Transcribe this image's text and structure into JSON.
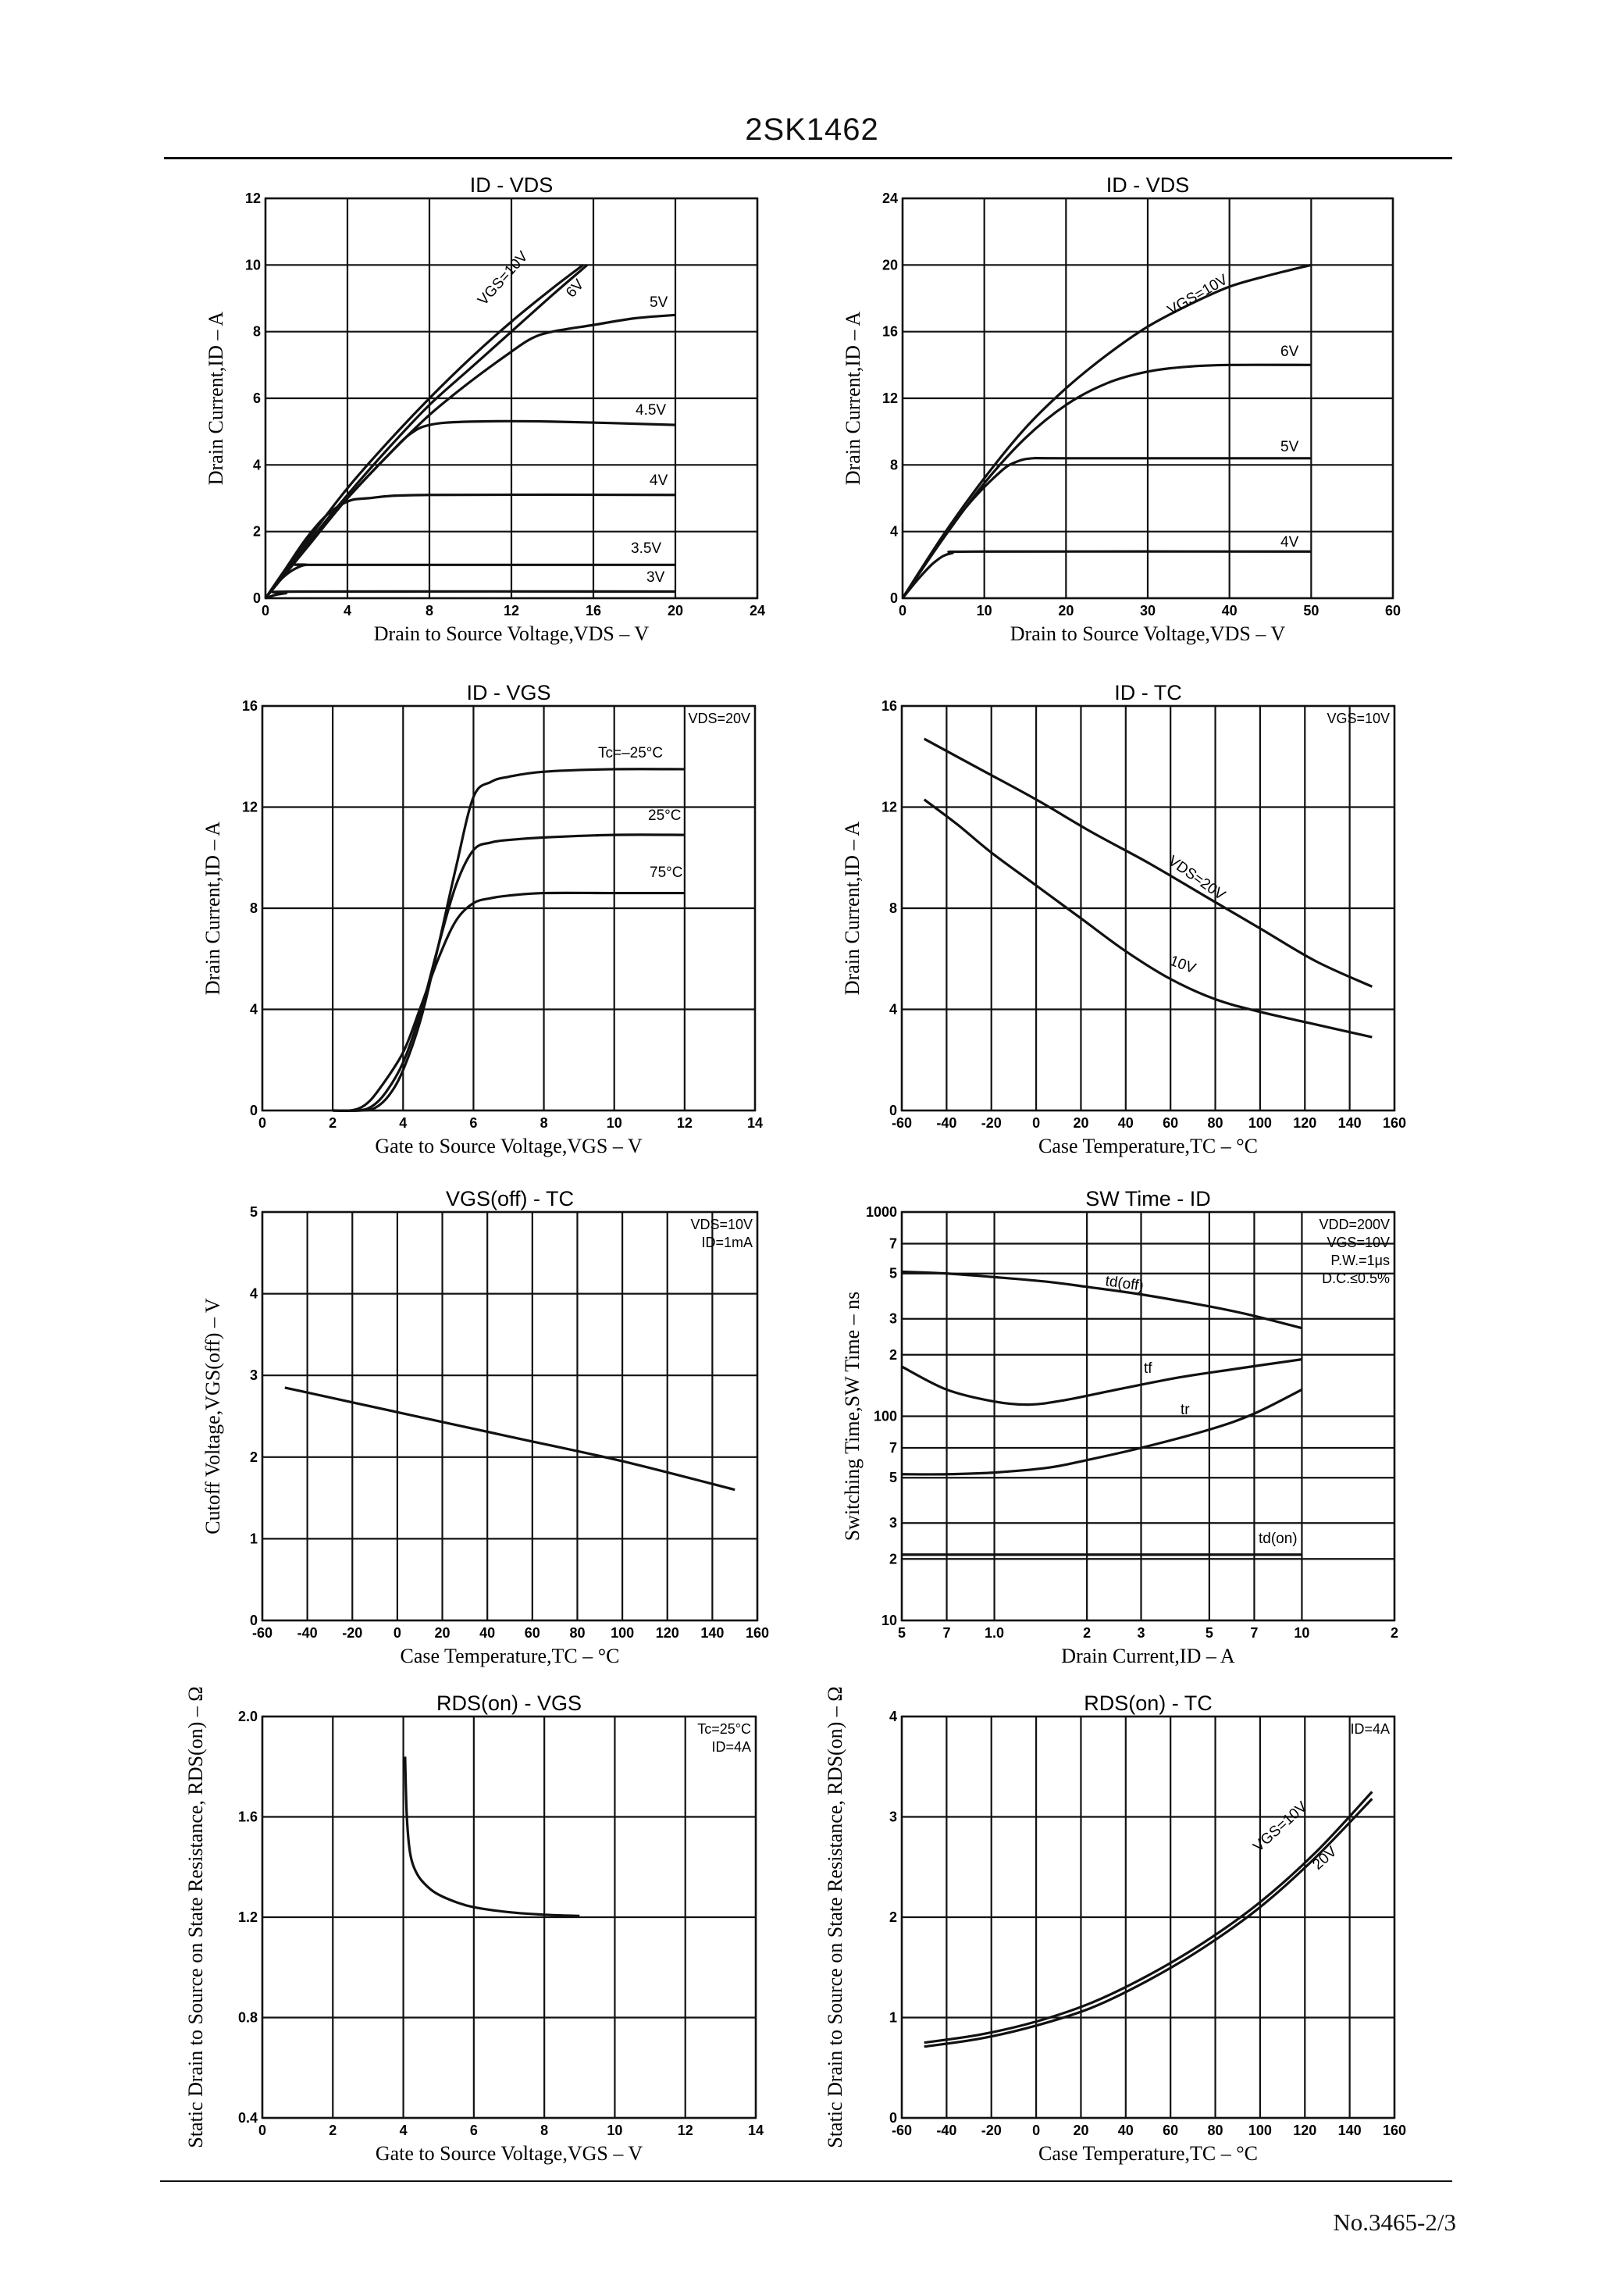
{
  "page": {
    "title": "2SK1462",
    "footer": "No.3465-2/3"
  },
  "chart_data": [
    {
      "id": "c1",
      "type": "line",
      "scale": "linear",
      "title": "ID - VDS",
      "xlabel": "Drain to Source Voltage,VDS – V",
      "ylabel": "Drain Current,ID – A",
      "xlim": [
        0,
        24
      ],
      "ylim": [
        0,
        12
      ],
      "xticks": [
        "0",
        "4",
        "8",
        "12",
        "16",
        "20",
        "24"
      ],
      "yticks": [
        "0",
        "2",
        "4",
        "6",
        "8",
        "10",
        "12"
      ],
      "notes": [],
      "series": [
        {
          "name": "VGS=10V",
          "x": [
            0,
            2,
            4,
            6,
            8,
            10,
            12,
            14,
            15.5
          ],
          "y": [
            0,
            1.7,
            3.3,
            4.7,
            6.0,
            7.2,
            8.3,
            9.3,
            10.0
          ]
        },
        {
          "name": "6V",
          "x": [
            0,
            2,
            4,
            6,
            8,
            10,
            12,
            14,
            15.7
          ],
          "y": [
            0,
            1.6,
            3.1,
            4.5,
            5.8,
            6.9,
            8.0,
            9.1,
            10.0
          ]
        },
        {
          "name": "5V",
          "x": [
            0,
            2,
            4,
            6,
            8,
            10,
            12,
            13,
            14,
            16,
            18,
            20
          ],
          "y": [
            0,
            1.6,
            3.0,
            4.3,
            5.5,
            6.5,
            7.4,
            7.8,
            8.0,
            8.2,
            8.4,
            8.5
          ]
        },
        {
          "name": "4.5V",
          "x": [
            0,
            2,
            4,
            6,
            7,
            8,
            10,
            14,
            20
          ],
          "y": [
            0,
            1.5,
            3.0,
            4.3,
            4.9,
            5.2,
            5.3,
            5.3,
            5.2
          ]
        },
        {
          "name": "4V",
          "x": [
            0,
            1,
            2,
            3,
            4,
            5,
            8,
            20
          ],
          "y": [
            0,
            0.9,
            1.8,
            2.5,
            2.9,
            3.0,
            3.1,
            3.1
          ]
        },
        {
          "name": "3.5V",
          "x": [
            0,
            0.5,
            1,
            1.5,
            2,
            3,
            20
          ],
          "y": [
            0,
            0.4,
            0.7,
            0.9,
            1.0,
            1.0,
            1.0
          ]
        },
        {
          "name": "3V",
          "x": [
            0,
            0.5,
            1,
            2,
            20
          ],
          "y": [
            0,
            0.1,
            0.15,
            0.2,
            0.2
          ]
        }
      ]
    },
    {
      "id": "c2",
      "type": "line",
      "scale": "linear",
      "title": "ID - VDS",
      "xlabel": "Drain to Source Voltage,VDS – V",
      "ylabel": "Drain Current,ID – A",
      "xlim": [
        0,
        60
      ],
      "ylim": [
        0,
        24
      ],
      "xticks": [
        "0",
        "10",
        "20",
        "30",
        "40",
        "50",
        "60"
      ],
      "yticks": [
        "0",
        "4",
        "8",
        "12",
        "16",
        "20",
        "24"
      ],
      "notes": [],
      "series": [
        {
          "name": "VGS=10V",
          "x": [
            0,
            5,
            10,
            15,
            20,
            25,
            30,
            35,
            40,
            45,
            50
          ],
          "y": [
            0,
            3.8,
            7.2,
            10.2,
            12.6,
            14.6,
            16.3,
            17.6,
            18.7,
            19.4,
            20.0
          ]
        },
        {
          "name": "6V",
          "x": [
            0,
            5,
            10,
            15,
            20,
            25,
            30,
            35,
            40,
            50
          ],
          "y": [
            0,
            3.6,
            6.9,
            9.6,
            11.6,
            12.9,
            13.6,
            13.9,
            14.0,
            14.0
          ]
        },
        {
          "name": "5V",
          "x": [
            0,
            4,
            8,
            12,
            14,
            16,
            20,
            50
          ],
          "y": [
            0,
            3.0,
            5.6,
            7.6,
            8.2,
            8.4,
            8.4,
            8.4
          ]
        },
        {
          "name": "4V",
          "x": [
            0,
            2,
            4,
            6,
            10,
            50
          ],
          "y": [
            0,
            1.2,
            2.2,
            2.7,
            2.8,
            2.8
          ]
        }
      ]
    },
    {
      "id": "c3",
      "type": "line",
      "scale": "linear",
      "title": "ID - VGS",
      "xlabel": "Gate to Source Voltage,VGS – V",
      "ylabel": "Drain Current,ID – A",
      "xlim": [
        0,
        14
      ],
      "ylim": [
        0,
        16
      ],
      "xticks": [
        "0",
        "2",
        "4",
        "6",
        "8",
        "10",
        "12",
        "14"
      ],
      "yticks": [
        "0",
        "4",
        "8",
        "12",
        "16"
      ],
      "notes": [
        "VDS=20V"
      ],
      "series": [
        {
          "name": "Tc=–25°C",
          "x": [
            2,
            2.8,
            3.2,
            3.6,
            4,
            4.5,
            5,
            5.5,
            6,
            6.5,
            7,
            8,
            10,
            12
          ],
          "y": [
            0,
            0,
            0.1,
            0.6,
            1.6,
            3.6,
            6.5,
            9.6,
            12.4,
            13.0,
            13.2,
            13.4,
            13.5,
            13.5
          ]
        },
        {
          "name": "25°C",
          "x": [
            2,
            2.7,
            3.1,
            3.5,
            4,
            4.5,
            5,
            5.5,
            6,
            6.5,
            7,
            8,
            10,
            12
          ],
          "y": [
            0,
            0,
            0.15,
            0.7,
            1.9,
            3.9,
            6.5,
            8.9,
            10.3,
            10.6,
            10.7,
            10.8,
            10.9,
            10.9
          ]
        },
        {
          "name": "75°C",
          "x": [
            2,
            2.5,
            2.9,
            3.3,
            4,
            4.5,
            5,
            5.5,
            6,
            6.5,
            7,
            8,
            10,
            12
          ],
          "y": [
            0,
            0,
            0.2,
            0.8,
            2.3,
            4.1,
            6.0,
            7.5,
            8.2,
            8.4,
            8.5,
            8.6,
            8.6,
            8.6
          ]
        }
      ]
    },
    {
      "id": "c4",
      "type": "line",
      "scale": "linear",
      "title": "ID - TC",
      "xlabel": "Case Temperature,TC – °C",
      "ylabel": "Drain Current,ID – A",
      "xlim": [
        -60,
        160
      ],
      "ylim": [
        0,
        16
      ],
      "xticks": [
        "-60",
        "-40",
        "-20",
        "0",
        "20",
        "40",
        "60",
        "80",
        "100",
        "120",
        "140",
        "160"
      ],
      "yticks": [
        "0",
        "4",
        "8",
        "12",
        "16"
      ],
      "notes": [
        "VGS=10V"
      ],
      "series": [
        {
          "name": "VDS=20V",
          "x": [
            -50,
            -25,
            0,
            25,
            50,
            75,
            100,
            125,
            150
          ],
          "y": [
            14.7,
            13.5,
            12.3,
            11.0,
            9.8,
            8.5,
            7.2,
            5.9,
            4.9
          ]
        },
        {
          "name": "10V",
          "x": [
            -50,
            -35,
            -20,
            0,
            20,
            40,
            60,
            80,
            100,
            125,
            150
          ],
          "y": [
            12.3,
            11.3,
            10.2,
            8.9,
            7.6,
            6.3,
            5.2,
            4.4,
            3.9,
            3.4,
            2.9
          ]
        }
      ]
    },
    {
      "id": "c5",
      "type": "line",
      "scale": "linear",
      "title": "VGS(off) - TC",
      "xlabel": "Case Temperature,TC – °C",
      "ylabel": "Cutoff Voltage,VGS(off) – V",
      "xlim": [
        -60,
        160
      ],
      "ylim": [
        0,
        5
      ],
      "xticks": [
        "-60",
        "-40",
        "-20",
        "0",
        "20",
        "40",
        "60",
        "80",
        "100",
        "120",
        "140",
        "160"
      ],
      "yticks": [
        "0",
        "1",
        "2",
        "3",
        "4",
        "5"
      ],
      "notes": [
        "VDS=10V",
        "ID=1mA"
      ],
      "series": [
        {
          "name": "",
          "x": [
            -50,
            0,
            50,
            100,
            150
          ],
          "y": [
            2.85,
            2.55,
            2.25,
            1.95,
            1.6
          ]
        }
      ]
    },
    {
      "id": "c6",
      "type": "line",
      "scale": "loglog",
      "title": "SW Time - ID",
      "xlabel": "Drain Current,ID – A",
      "ylabel": "Switching Time,SW Time – ns",
      "xlim": [
        0.5,
        20
      ],
      "ylim": [
        10,
        1000
      ],
      "xticks": [
        {
          "v": 0.5,
          "t": "5"
        },
        {
          "v": 0.7,
          "t": "7"
        },
        {
          "v": 1,
          "t": "1.0"
        },
        {
          "v": 2,
          "t": "2"
        },
        {
          "v": 3,
          "t": "3"
        },
        {
          "v": 5,
          "t": "5"
        },
        {
          "v": 7,
          "t": "7"
        },
        {
          "v": 10,
          "t": "10"
        },
        {
          "v": 20,
          "t": "2"
        }
      ],
      "yticks": [
        {
          "v": 10,
          "t": "10"
        },
        {
          "v": 20,
          "t": "2"
        },
        {
          "v": 30,
          "t": "3"
        },
        {
          "v": 50,
          "t": "5"
        },
        {
          "v": 70,
          "t": "7"
        },
        {
          "v": 100,
          "t": "100"
        },
        {
          "v": 200,
          "t": "2"
        },
        {
          "v": 300,
          "t": "3"
        },
        {
          "v": 500,
          "t": "5"
        },
        {
          "v": 700,
          "t": "7"
        },
        {
          "v": 1000,
          "t": "1000"
        }
      ],
      "notes": [
        "VDD=200V",
        "VGS=10V",
        "P.W.=1μs",
        "D.C.≤0.5%"
      ],
      "series": [
        {
          "name": "td(off)",
          "x": [
            0.5,
            0.7,
            1,
            1.5,
            2,
            3,
            5,
            7,
            10
          ],
          "y": [
            510,
            500,
            480,
            455,
            430,
            395,
            345,
            310,
            270
          ]
        },
        {
          "name": "tf",
          "x": [
            0.5,
            0.7,
            1,
            1.3,
            1.7,
            2.5,
            4,
            6,
            10
          ],
          "y": [
            175,
            135,
            118,
            114,
            120,
            135,
            155,
            170,
            190
          ]
        },
        {
          "name": "tr",
          "x": [
            0.5,
            0.7,
            1,
            1.5,
            2,
            3,
            5,
            7,
            10
          ],
          "y": [
            52,
            52,
            53,
            56,
            61,
            70,
            86,
            103,
            135
          ]
        },
        {
          "name": "td(on)",
          "x": [
            0.5,
            10
          ],
          "y": [
            21,
            21
          ]
        }
      ]
    },
    {
      "id": "c7",
      "type": "line",
      "scale": "linear",
      "title": "RDS(on) - VGS",
      "xlabel": "Gate to Source Voltage,VGS – V",
      "ylabel": "Static Drain to Source on State Resistance, RDS(on) – Ω",
      "xlim": [
        0,
        14
      ],
      "ylim": [
        0.4,
        2.0
      ],
      "xticks": [
        "0",
        "2",
        "4",
        "6",
        "8",
        "10",
        "12",
        "14"
      ],
      "yticks": [
        "0.4",
        "0.8",
        "1.2",
        "1.6",
        "2.0"
      ],
      "notes": [
        "Tc=25°C",
        "ID=4A"
      ],
      "series": [
        {
          "name": "",
          "x": [
            4.05,
            4.1,
            4.2,
            4.4,
            4.7,
            5.0,
            5.5,
            6.0,
            7.0,
            8.0,
            9.0
          ],
          "y": [
            1.84,
            1.6,
            1.45,
            1.37,
            1.32,
            1.29,
            1.26,
            1.24,
            1.22,
            1.21,
            1.205
          ]
        }
      ]
    },
    {
      "id": "c8",
      "type": "line",
      "scale": "linear",
      "title": "RDS(on) - TC",
      "xlabel": "Case Temperature,TC – °C",
      "ylabel": "Static Drain to Source on State Resistance, RDS(on) – Ω",
      "xlim": [
        -60,
        160
      ],
      "ylim": [
        0,
        4
      ],
      "xticks": [
        "-60",
        "-40",
        "-20",
        "0",
        "20",
        "40",
        "60",
        "80",
        "100",
        "120",
        "140",
        "160"
      ],
      "yticks": [
        "0",
        "1",
        "2",
        "3",
        "4"
      ],
      "notes": [
        "ID=4A"
      ],
      "series": [
        {
          "name": "VGS=10V",
          "x": [
            -50,
            -25,
            0,
            25,
            50,
            75,
            100,
            125,
            150
          ],
          "y": [
            0.75,
            0.83,
            0.96,
            1.15,
            1.42,
            1.75,
            2.15,
            2.65,
            3.25
          ]
        },
        {
          "name": "20V",
          "x": [
            -50,
            -25,
            0,
            25,
            50,
            75,
            100,
            125,
            150
          ],
          "y": [
            0.71,
            0.79,
            0.92,
            1.1,
            1.37,
            1.7,
            2.1,
            2.6,
            3.18
          ]
        }
      ]
    }
  ]
}
